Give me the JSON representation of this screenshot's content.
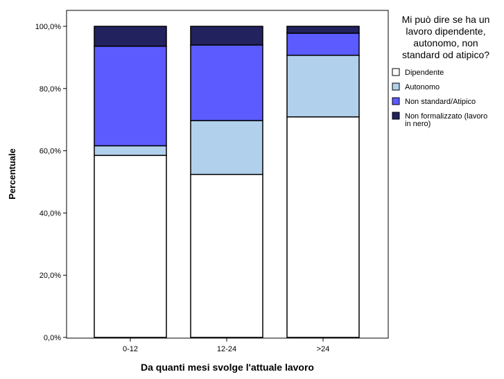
{
  "chart_data": {
    "type": "bar",
    "stacked": true,
    "categories": [
      "0-12",
      "12-24",
      ">24"
    ],
    "series": [
      {
        "name": "Dipendente",
        "color": "#ffffff",
        "values": [
          58.5,
          52.4,
          70.9
        ]
      },
      {
        "name": "Autonomo",
        "color": "#b1d0ec",
        "values": [
          3.1,
          17.3,
          19.8
        ]
      },
      {
        "name": "Non standard/Atipico",
        "color": "#5b5bff",
        "values": [
          32.0,
          24.3,
          7.1
        ]
      },
      {
        "name": "Non formalizzato (lavoro in nero)",
        "color": "#22225e",
        "values": [
          6.4,
          6.0,
          2.2
        ]
      }
    ],
    "xlabel": "Da quanti mesi svolge l'attuale lavoro",
    "ylabel": "Percentuale",
    "ylim": [
      0,
      100
    ],
    "yticks": [
      {
        "value": 0,
        "label": "0,0%"
      },
      {
        "value": 20,
        "label": "20,0%"
      },
      {
        "value": 40,
        "label": "40,0%"
      },
      {
        "value": 60,
        "label": "60,0%"
      },
      {
        "value": 80,
        "label": "80,0%"
      },
      {
        "value": 100,
        "label": "100,0%"
      }
    ],
    "grid": false,
    "legend": {
      "title_lines": [
        "Mi può dire se ha un",
        "lavoro dipendente,",
        "autonomo, non",
        "standard od atipico?"
      ],
      "placement": "right",
      "entries": [
        {
          "series": 0,
          "lines": [
            "Dipendente"
          ]
        },
        {
          "series": 1,
          "lines": [
            "Autonomo"
          ]
        },
        {
          "series": 2,
          "lines": [
            "Non standard/Atipico"
          ]
        },
        {
          "series": 3,
          "lines": [
            "Non formalizzato (lavoro",
            "in nero)"
          ]
        }
      ]
    }
  }
}
